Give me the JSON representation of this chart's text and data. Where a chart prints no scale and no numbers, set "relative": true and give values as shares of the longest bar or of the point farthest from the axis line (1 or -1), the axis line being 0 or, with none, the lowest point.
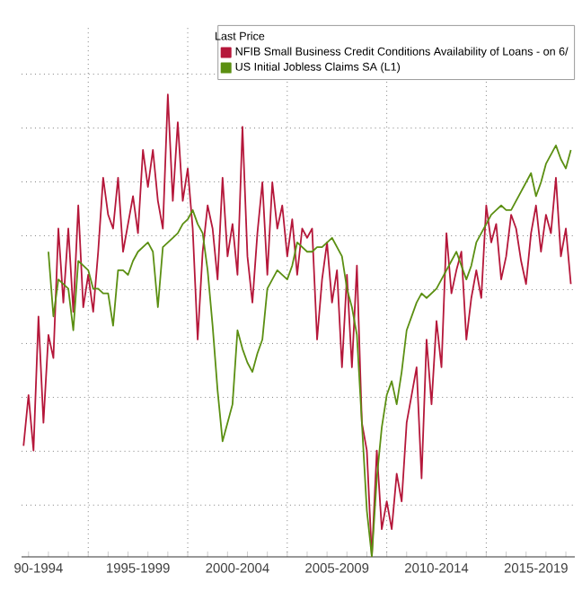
{
  "chart_data": {
    "type": "line",
    "relative": true,
    "legend": "top right",
    "legend_title": "Last Price",
    "grid": true,
    "tick_labels": "x",
    "marker": "none",
    "line_style": "solid",
    "categories": [
      null,
      null,
      null,
      "90-1994",
      null,
      null,
      null,
      null,
      null,
      null,
      null,
      null,
      null,
      null,
      null,
      null,
      null,
      null,
      null,
      null,
      null,
      null,
      null,
      "1995-1999",
      null,
      null,
      null,
      null,
      null,
      null,
      null,
      null,
      null,
      null,
      null,
      null,
      null,
      null,
      null,
      null,
      null,
      null,
      null,
      "2000-2004",
      null,
      null,
      null,
      null,
      null,
      null,
      null,
      null,
      null,
      null,
      null,
      null,
      null,
      null,
      null,
      null,
      null,
      null,
      null,
      "2005-2009",
      null,
      null,
      null,
      null,
      null,
      null,
      null,
      null,
      null,
      null,
      null,
      null,
      null,
      null,
      null,
      null,
      null,
      null,
      null,
      "2010-2014",
      null,
      null,
      null,
      null,
      null,
      null,
      null,
      null,
      null,
      null,
      null,
      null,
      null,
      null,
      null,
      null,
      null,
      null,
      null,
      "2015-2019",
      null,
      null,
      null,
      null,
      null,
      null,
      null
    ],
    "series": [
      {
        "name": "NFIB Small Business Credit Conditions Availability of Loans - on 6/",
        "color": "#b5173a",
        "values": [
          0.24,
          0.35,
          0.23,
          0.52,
          0.29,
          0.48,
          0.43,
          0.71,
          0.55,
          0.71,
          0.53,
          0.76,
          0.54,
          0.61,
          0.53,
          0.66,
          0.82,
          0.74,
          0.71,
          0.82,
          0.66,
          0.72,
          0.78,
          0.7,
          0.88,
          0.8,
          0.88,
          0.77,
          0.71,
          1.0,
          0.77,
          0.94,
          0.77,
          0.84,
          0.71,
          0.47,
          0.66,
          0.76,
          0.71,
          0.6,
          0.82,
          0.65,
          0.72,
          0.61,
          0.93,
          0.65,
          0.55,
          0.7,
          0.81,
          0.61,
          0.81,
          0.71,
          0.76,
          0.65,
          0.73,
          0.61,
          0.71,
          0.69,
          0.71,
          0.47,
          0.6,
          0.68,
          0.55,
          0.62,
          0.41,
          0.61,
          0.41,
          0.63,
          0.29,
          0.23,
          0.0,
          0.23,
          0.06,
          0.12,
          0.06,
          0.18,
          0.12,
          0.29,
          0.35,
          0.41,
          0.17,
          0.47,
          0.33,
          0.51,
          0.41,
          0.7,
          0.57,
          0.62,
          0.66,
          0.47,
          0.56,
          0.62,
          0.56,
          0.76,
          0.68,
          0.72,
          0.6,
          0.65,
          0.74,
          0.71,
          0.64,
          0.59,
          0.7,
          0.76,
          0.66,
          0.74,
          0.7,
          0.82,
          0.65,
          0.71,
          0.59
        ]
      },
      {
        "name": "US Initial Jobless Claims SA  (L1)",
        "color": "#5b8f12",
        "values": [
          null,
          null,
          null,
          null,
          null,
          0.66,
          0.52,
          0.6,
          0.59,
          0.58,
          0.49,
          0.64,
          0.63,
          0.62,
          0.58,
          0.58,
          0.57,
          0.57,
          0.5,
          0.62,
          0.62,
          0.61,
          0.64,
          0.66,
          0.67,
          0.68,
          0.66,
          0.54,
          0.67,
          0.68,
          0.69,
          0.7,
          0.72,
          0.73,
          0.75,
          0.72,
          0.7,
          0.62,
          0.5,
          0.36,
          0.25,
          0.29,
          0.33,
          0.49,
          0.45,
          0.42,
          0.4,
          0.44,
          0.47,
          0.58,
          0.6,
          0.62,
          0.61,
          0.6,
          0.63,
          0.68,
          0.67,
          0.66,
          0.66,
          0.67,
          0.67,
          0.68,
          0.69,
          0.67,
          0.65,
          0.58,
          0.54,
          0.48,
          0.29,
          0.1,
          0.0,
          0.17,
          0.28,
          0.35,
          0.38,
          0.33,
          0.4,
          0.49,
          0.52,
          0.55,
          0.57,
          0.56,
          0.57,
          0.58,
          0.6,
          0.62,
          0.64,
          0.66,
          0.63,
          0.6,
          0.63,
          0.68,
          0.7,
          0.72,
          0.74,
          0.75,
          0.76,
          0.75,
          0.75,
          0.77,
          0.79,
          0.81,
          0.83,
          0.78,
          0.81,
          0.85,
          0.87,
          0.89,
          0.86,
          0.84,
          0.88
        ]
      }
    ]
  }
}
